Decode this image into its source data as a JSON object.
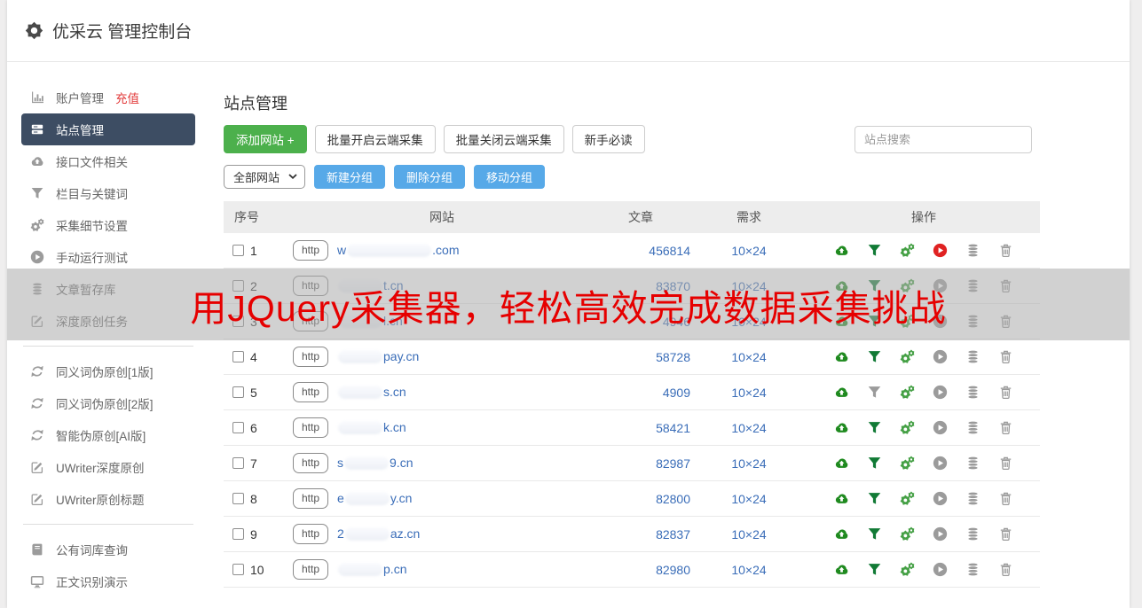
{
  "header": {
    "title": "优采云 管理控制台"
  },
  "sidebar": {
    "sections": [
      {
        "items": [
          {
            "icon": "bar-chart",
            "label": "账户管理",
            "badge": "充值",
            "active": false
          },
          {
            "icon": "server",
            "label": "站点管理",
            "active": true
          },
          {
            "icon": "cloud-upload",
            "label": "接口文件相关",
            "active": false
          },
          {
            "icon": "funnel",
            "label": "栏目与关键词",
            "active": false
          },
          {
            "icon": "gears",
            "label": "采集细节设置",
            "active": false
          },
          {
            "icon": "play",
            "label": "手动运行测试",
            "active": false
          },
          {
            "icon": "database",
            "label": "文章暂存库",
            "active": false
          },
          {
            "icon": "edit",
            "label": "深度原创任务",
            "active": false
          }
        ]
      },
      {
        "items": [
          {
            "icon": "refresh",
            "label": "同义词伪原创[1版]",
            "active": false
          },
          {
            "icon": "refresh",
            "label": "同义词伪原创[2版]",
            "active": false
          },
          {
            "icon": "refresh",
            "label": "智能伪原创[AI版]",
            "active": false
          },
          {
            "icon": "edit",
            "label": "UWriter深度原创",
            "active": false
          },
          {
            "icon": "edit",
            "label": "UWriter原创标题",
            "active": false
          }
        ]
      },
      {
        "items": [
          {
            "icon": "book",
            "label": "公有词库查询",
            "active": false
          },
          {
            "icon": "monitor",
            "label": "正文识别演示",
            "active": false
          }
        ]
      }
    ]
  },
  "main": {
    "title": "站点管理",
    "toolbar": {
      "add_site": "添加网站 +",
      "batch_open": "批量开启云端采集",
      "batch_close": "批量关闭云端采集",
      "newbie_guide": "新手必读",
      "search_placeholder": "站点搜索"
    },
    "groupbar": {
      "filter_value": "全部网站",
      "new_group": "新建分组",
      "delete_group": "删除分组",
      "move_group": "移动分组"
    },
    "table": {
      "headers": [
        "序号",
        "网站",
        "文章",
        "需求",
        "操作"
      ],
      "http_label": "http",
      "rows": [
        {
          "num": "1",
          "domain_prefix": "w",
          "domain_suffix": ".com",
          "articles": "456814",
          "demand": "10×24",
          "funnel": "green",
          "play": "red"
        },
        {
          "num": "2",
          "domain_prefix": "",
          "domain_suffix": "t.cn",
          "articles": "83870",
          "demand": "10×24",
          "funnel": "green",
          "play": "gray"
        },
        {
          "num": "3",
          "domain_prefix": "",
          "domain_suffix": "l.cn",
          "articles": "4946",
          "demand": "10×24",
          "funnel": "green",
          "play": "gray"
        },
        {
          "num": "4",
          "domain_prefix": "",
          "domain_suffix": "pay.cn",
          "articles": "58728",
          "demand": "10×24",
          "funnel": "green",
          "play": "gray"
        },
        {
          "num": "5",
          "domain_prefix": "",
          "domain_suffix": "s.cn",
          "articles": "4909",
          "demand": "10×24",
          "funnel": "gray",
          "play": "gray"
        },
        {
          "num": "6",
          "domain_prefix": "",
          "domain_suffix": "k.cn",
          "articles": "58421",
          "demand": "10×24",
          "funnel": "green",
          "play": "gray"
        },
        {
          "num": "7",
          "domain_prefix": "s",
          "domain_suffix": "9.cn",
          "articles": "82987",
          "demand": "10×24",
          "funnel": "green",
          "play": "gray"
        },
        {
          "num": "8",
          "domain_prefix": "e",
          "domain_suffix": "y.cn",
          "articles": "82800",
          "demand": "10×24",
          "funnel": "green",
          "play": "gray"
        },
        {
          "num": "9",
          "domain_prefix": "2",
          "domain_suffix": "az.cn",
          "articles": "82837",
          "demand": "10×24",
          "funnel": "green",
          "play": "gray"
        },
        {
          "num": "10",
          "domain_prefix": "",
          "domain_suffix": "p.cn",
          "articles": "82980",
          "demand": "10×24",
          "funnel": "green",
          "play": "gray"
        }
      ]
    }
  },
  "watermark": {
    "text": "用JQuery采集器，轻松高效完成数据采集挑战",
    "color": "#e60000"
  },
  "colors": {
    "active_sidebar_bg": "#3d4d63",
    "green_button": "#4cb04c",
    "blue_button": "#57a9e8",
    "link_blue": "#3a6db8",
    "icon_green": "#1f8a1f",
    "icon_red": "#e02222",
    "icon_gray": "#9b9b9b",
    "badge_red": "#e23b3b"
  }
}
